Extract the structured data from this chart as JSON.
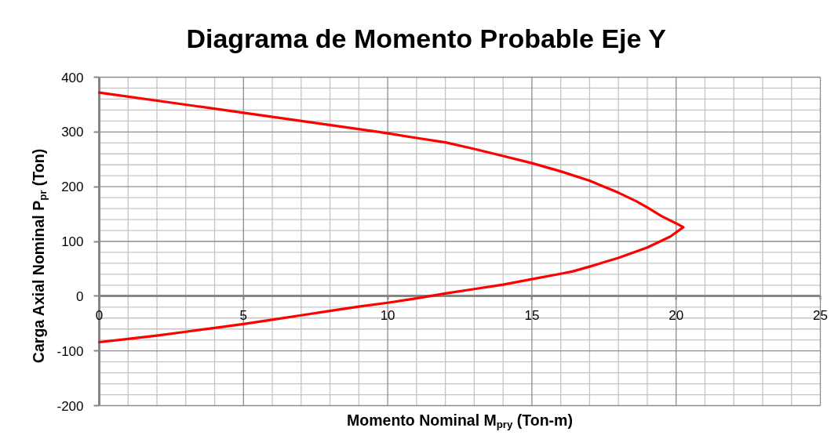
{
  "chart_data": {
    "type": "line",
    "title": "Diagrama de Momento Probable Eje Y",
    "xlabel": "Momento Nominal M$_{pry}$ (Ton-m)",
    "ylabel": "Carga Axial Nominal P$_{pr}$ (Ton)",
    "x": [
      0,
      5,
      9.7,
      11,
      12,
      13,
      14,
      15,
      16,
      17,
      18,
      18.6,
      19,
      19.5,
      20,
      20.25,
      19.8,
      19,
      18,
      17,
      16.4,
      16,
      15,
      14,
      13,
      12,
      11,
      10,
      9,
      8,
      7,
      6,
      5,
      4,
      3,
      2,
      1,
      0
    ],
    "series": [
      {
        "color": "#ff0000",
        "values": [
          372,
          335,
          300,
          289,
          281,
          269,
          256,
          243,
          228,
          211,
          189,
          174,
          162,
          146,
          133,
          126,
          109,
          89,
          70,
          54,
          45,
          41,
          31,
          21,
          13,
          5,
          -4,
          -12,
          -19,
          -27,
          -35,
          -43,
          -51,
          -58,
          -65,
          -72,
          -78,
          -84
        ]
      }
    ],
    "xlim": [
      0,
      25
    ],
    "ylim": [
      -200,
      400
    ],
    "xticks": [
      0,
      5,
      10,
      15,
      20,
      25
    ],
    "yticks": [
      -200,
      -100,
      0,
      100,
      200,
      300,
      400
    ],
    "grid": true,
    "line_style": "solid"
  }
}
